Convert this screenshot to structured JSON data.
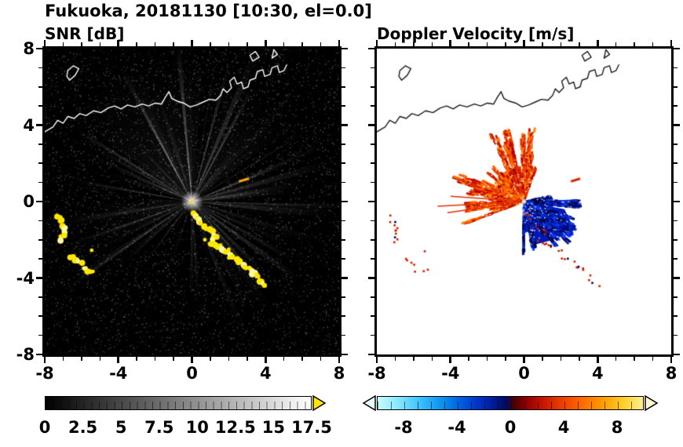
{
  "figure_title": "Fukuoka, 20181130 [10:30, el=0.0]",
  "panels": {
    "snr": {
      "title": "SNR [dB]"
    },
    "doppler": {
      "title": "Doppler Velocity [m/s]"
    }
  },
  "axes": {
    "xlim": [
      -8,
      8
    ],
    "ylim": [
      -8,
      8
    ],
    "major_ticks": [
      -8,
      -4,
      0,
      4,
      8
    ],
    "minor_tick_step": 1,
    "x_tick_labels": [
      "-8",
      "-4",
      "0",
      "4",
      "8"
    ],
    "y_tick_labels": [
      "8",
      "4",
      "0",
      "-4",
      "-8"
    ]
  },
  "colorbars": {
    "snr": {
      "min": 0,
      "max": 17.5,
      "tick_values": [
        0,
        2.5,
        5,
        7.5,
        10,
        12.5,
        15,
        17.5
      ],
      "tick_labels": [
        "0",
        "2.5",
        "5",
        "7.5",
        "10",
        "12.5",
        "15",
        "17.5"
      ],
      "segment_step": 0.5,
      "gradient_stops": [
        {
          "at": 0,
          "color": "#000000"
        },
        {
          "at": 1,
          "color": "#ffffff"
        }
      ],
      "over_arrow_color": "#ffe600"
    },
    "doppler": {
      "min": -10,
      "max": 10,
      "tick_values": [
        -8,
        -4,
        0,
        4,
        8
      ],
      "tick_labels": [
        "-8",
        "-4",
        "0",
        "4",
        "8"
      ],
      "segment_step": 1,
      "gradient_stops": [
        {
          "at": 0.0,
          "color": "#c8fbff"
        },
        {
          "at": 0.07,
          "color": "#8deaff"
        },
        {
          "at": 0.15,
          "color": "#45c6ff"
        },
        {
          "at": 0.23,
          "color": "#0f9af2"
        },
        {
          "at": 0.3,
          "color": "#0068e0"
        },
        {
          "at": 0.37,
          "color": "#0038cc"
        },
        {
          "at": 0.43,
          "color": "#001ca0"
        },
        {
          "at": 0.485,
          "color": "#000b5e"
        },
        {
          "at": 0.515,
          "color": "#4c0000"
        },
        {
          "at": 0.56,
          "color": "#8e0000"
        },
        {
          "at": 0.62,
          "color": "#c41400"
        },
        {
          "at": 0.69,
          "color": "#ea3c00"
        },
        {
          "at": 0.77,
          "color": "#ff6a00"
        },
        {
          "at": 0.85,
          "color": "#ff9d00"
        },
        {
          "at": 0.93,
          "color": "#ffd02e"
        },
        {
          "at": 1.0,
          "color": "#ffef90"
        }
      ],
      "under_arrow_color": "#e6feff",
      "over_arrow_color": "#fff8d0"
    }
  },
  "arcs": {
    "south_chain": [
      [
        0.05,
        -0.55
      ],
      [
        0.35,
        -0.9
      ],
      [
        0.6,
        -1.25
      ],
      [
        0.95,
        -1.5
      ],
      [
        1.25,
        -1.85
      ],
      [
        1.05,
        -2.2
      ],
      [
        1.45,
        -2.35
      ],
      [
        1.8,
        -2.6
      ],
      [
        2.1,
        -2.85
      ],
      [
        2.45,
        -3.0
      ],
      [
        2.75,
        -3.3
      ],
      [
        3.1,
        -3.55
      ],
      [
        3.45,
        -3.8
      ],
      [
        3.75,
        -4.1
      ],
      [
        3.95,
        -4.35
      ]
    ],
    "west_arc1": [
      [
        -7.35,
        -0.75
      ],
      [
        -7.1,
        -1.05
      ],
      [
        -6.9,
        -1.4
      ],
      [
        -6.95,
        -1.75
      ],
      [
        -7.15,
        -2.05
      ]
    ],
    "west_arc2": [
      [
        -6.55,
        -2.85
      ],
      [
        -6.3,
        -3.1
      ],
      [
        -6.0,
        -3.2
      ]
    ],
    "west_arc3": [
      [
        -5.9,
        -3.5
      ],
      [
        -5.6,
        -3.65
      ],
      [
        -5.3,
        -3.6
      ]
    ],
    "small_bits": [
      [
        -5.45,
        -2.55
      ],
      [
        0.7,
        -2.0
      ],
      [
        1.15,
        -2.15
      ],
      [
        2.0,
        -2.5
      ]
    ]
  },
  "coastline": {
    "mainline": [
      [
        -8,
        3.65
      ],
      [
        -7.55,
        3.9
      ],
      [
        -7.3,
        4.25
      ],
      [
        -7.0,
        4.1
      ],
      [
        -6.75,
        4.45
      ],
      [
        -6.4,
        4.35
      ],
      [
        -6.1,
        4.6
      ],
      [
        -5.75,
        4.5
      ],
      [
        -5.35,
        4.75
      ],
      [
        -4.95,
        4.65
      ],
      [
        -4.55,
        4.9
      ],
      [
        -4.2,
        5.0
      ],
      [
        -3.85,
        4.85
      ],
      [
        -3.5,
        5.05
      ],
      [
        -3.1,
        4.95
      ],
      [
        -2.7,
        5.1
      ],
      [
        -2.35,
        5.0
      ],
      [
        -2.0,
        5.15
      ],
      [
        -1.65,
        5.1
      ],
      [
        -1.45,
        5.45
      ],
      [
        -1.25,
        5.75
      ],
      [
        -1.1,
        5.4
      ],
      [
        -0.8,
        5.25
      ],
      [
        -0.45,
        5.15
      ],
      [
        -0.1,
        4.95
      ],
      [
        0.25,
        5.05
      ],
      [
        0.6,
        5.2
      ],
      [
        0.95,
        5.35
      ],
      [
        1.3,
        5.3
      ],
      [
        1.55,
        5.55
      ],
      [
        1.7,
        5.9
      ],
      [
        1.9,
        5.7
      ],
      [
        2.15,
        5.95
      ],
      [
        2.05,
        6.3
      ],
      [
        2.3,
        6.5
      ],
      [
        2.45,
        6.15
      ],
      [
        2.7,
        6.25
      ],
      [
        2.8,
        5.9
      ],
      [
        3.05,
        6.0
      ],
      [
        3.15,
        6.35
      ],
      [
        3.45,
        6.45
      ],
      [
        3.55,
        6.8
      ],
      [
        3.85,
        6.9
      ],
      [
        3.95,
        6.55
      ],
      [
        4.25,
        6.65
      ],
      [
        4.35,
        7.0
      ],
      [
        4.65,
        7.1
      ],
      [
        4.75,
        6.75
      ],
      [
        5.0,
        6.85
      ],
      [
        5.15,
        7.15
      ]
    ],
    "shapes": [
      [
        [
          -6.65,
          6.35
        ],
        [
          -6.35,
          6.6
        ],
        [
          -6.15,
          6.95
        ],
        [
          -6.45,
          7.1
        ],
        [
          -6.75,
          6.85
        ],
        [
          -6.8,
          6.55
        ]
      ],
      [
        [
          3.3,
          7.35
        ],
        [
          3.65,
          7.55
        ],
        [
          3.45,
          7.85
        ],
        [
          3.15,
          7.65
        ]
      ],
      [
        [
          4.35,
          7.5
        ],
        [
          4.65,
          7.7
        ],
        [
          4.45,
          7.95
        ]
      ]
    ]
  },
  "chart_data": [
    {
      "type": "heatmap",
      "panel": "left",
      "title": "SNR [dB]",
      "xlabel": "",
      "ylabel": "",
      "xlim": [
        -8,
        8
      ],
      "ylim": [
        -8,
        8
      ],
      "x_ticks": [
        -8,
        -4,
        0,
        4,
        8
      ],
      "y_ticks": [
        -8,
        -4,
        0,
        4,
        8
      ],
      "colorbar_range": [
        0,
        17.5
      ],
      "colorbar_ticks": [
        0,
        2.5,
        5,
        7.5,
        10,
        12.5,
        15,
        17.5
      ],
      "colormap": "grayscale black to white with yellow over-range arrow",
      "content_summary": "Radar PPI of SNR centered on radar at (0,0): faint gray radial beams and speckle on black, strong yellow echo arcs SW and S-SE of radar, coastline drawn in white across the top",
      "render": {
        "seed": 7,
        "background": "#000000",
        "noise_dots": 9000,
        "beam_count": 150,
        "beam_gap_deg": [
          252,
          288
        ],
        "glows": [
          {
            "a": 115,
            "l": 195,
            "w": 30,
            "o": 0.055
          },
          {
            "a": 55,
            "l": 170,
            "w": 18,
            "o": 0.05
          },
          {
            "a": 15,
            "l": 120,
            "w": 10,
            "o": 0.05
          },
          {
            "a": 195,
            "l": 150,
            "w": 14,
            "o": 0.045
          },
          {
            "a": 305,
            "l": 160,
            "w": 8,
            "o": 0.05
          }
        ],
        "bright_beams": [
          {
            "a": 95,
            "l": 200,
            "o": 0.42
          },
          {
            "a": 118,
            "l": 190,
            "o": 0.38
          },
          {
            "a": 148,
            "l": 175,
            "o": 0.33
          },
          {
            "a": 62,
            "l": 165,
            "o": 0.36
          },
          {
            "a": 75,
            "l": 185,
            "o": 0.3
          },
          {
            "a": 22,
            "l": 125,
            "o": 0.3
          },
          {
            "a": 8,
            "l": 100,
            "o": 0.24
          },
          {
            "a": 170,
            "l": 150,
            "o": 0.26
          },
          {
            "a": 200,
            "l": 140,
            "o": 0.2
          },
          {
            "a": 222,
            "l": 120,
            "o": 0.18
          },
          {
            "a": 310,
            "l": 150,
            "o": 0.28
          },
          {
            "a": 335,
            "l": 90,
            "o": 0.18
          }
        ],
        "arc_color": "#ffe800",
        "arc_color2": "#fff9a0",
        "center_dot_color": "#ffd24a",
        "orange_dash": {
          "from": [
            2.55,
            1.05
          ],
          "to": [
            3.1,
            1.2
          ],
          "color": "#ffaa00"
        }
      }
    },
    {
      "type": "heatmap",
      "panel": "right",
      "title": "Doppler Velocity [m/s]",
      "xlabel": "",
      "ylabel": "",
      "xlim": [
        -8,
        8
      ],
      "ylim": [
        -8,
        8
      ],
      "x_ticks": [
        -8,
        -4,
        0,
        4,
        8
      ],
      "y_ticks": [
        -8,
        -4,
        0,
        4,
        8
      ],
      "colorbar_range": [
        -10,
        10
      ],
      "colorbar_ticks": [
        -8,
        -4,
        0,
        4,
        8
      ],
      "colormap": "diverging cyan-blue-navy (negative) to dark red-orange-yellow (positive)",
      "content_summary": "Doppler velocity field: positive (red-orange) echoes fan out N to W of radar, negative (blue-navy) echoes concentrate E-SE of radar, scattered echo fragments SW, coastline in dark gray",
      "render": {
        "seed": 13,
        "background": "#ffffff",
        "red_fan": {
          "a0": 68,
          "a1": 200,
          "rmax": 3.9,
          "spikes": 34,
          "dots": 2600,
          "colors": [
            "#e03000",
            "#ff5500",
            "#cc1500",
            "#ff6a00",
            "#b00000",
            "#ff8800"
          ]
        },
        "red_rays": [
          {
            "a": 183,
            "r": 4.7
          },
          {
            "a": 188,
            "r": 4.2
          },
          {
            "a": 176,
            "r": 4.0
          }
        ],
        "blue_fan": {
          "a0": 268,
          "a1": 372,
          "rmax": 3.1,
          "spikes": 26,
          "dots": 2200,
          "colors": [
            "#0020c0",
            "#0030e8",
            "#001090",
            "#000a60",
            "#1040ff",
            "#000435"
          ]
        },
        "blue_core": [
          [
            0,
            0
          ],
          [
            0.4,
            -2.3
          ],
          [
            1.6,
            -2.0
          ],
          [
            2.6,
            -1.2
          ],
          [
            2.2,
            -0.4
          ]
        ],
        "blue_core_color": "#0018b8",
        "navy": "#000a50",
        "chain_red": "#d42000",
        "red_dash": {
          "from": [
            2.55,
            1.05
          ],
          "to": [
            3.05,
            1.2
          ],
          "color": "#dd2200"
        },
        "center_color": "#c0c0c0"
      }
    }
  ]
}
